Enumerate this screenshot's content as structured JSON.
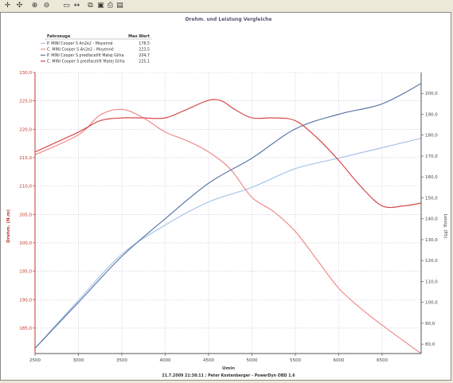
{
  "toolbar": {
    "icons": [
      "plus-cursor-icon",
      "zoom-to-point-icon",
      "zoom-in-icon",
      "zoom-out-icon",
      "select-region-icon",
      "pan-icon",
      "copy-icon",
      "save-icon",
      "print-icon",
      "export-icon"
    ]
  },
  "colors": {
    "p_cooper_a": "#a9c4e8",
    "c_cooper_a": "#f08a8a",
    "p_cooper_b": "#5b78a6",
    "c_cooper_b": "#d94a4a",
    "left_axis": "#c0392b",
    "grid": "#c8c8dc"
  },
  "chart_data": {
    "type": "line",
    "title": "Drehm. und Leistung Vergleiche",
    "legend_header": {
      "vehicle": "Fahrzeuge",
      "max": "Max Wert"
    },
    "xlabel": "Umin",
    "ylabel_left": "Drehm. (N.m)",
    "ylabel_right": "Leistg. (PS)",
    "footer": "21.7.2009 21:38:11 : Peter Kostenberger - PowerDyn OBD 1.6",
    "xlim": [
      2500,
      6950
    ],
    "ylim_left": [
      180.5,
      230
    ],
    "ylim_right": [
      75.5,
      210
    ],
    "x_ticks": [
      "2500",
      "3000",
      "3500",
      "4000",
      "4500",
      "5000",
      "5500",
      "6000",
      "6500"
    ],
    "y_left_ticks": [
      "185,0",
      "190,0",
      "195,0",
      "200,0",
      "205,0",
      "210,0",
      "215,0",
      "220,0",
      "225,0",
      "230,0"
    ],
    "y_right_ticks": [
      "80,0",
      "90,0",
      "100,0",
      "110,0",
      "120,0",
      "130,0",
      "140,0",
      "150,0",
      "160,0",
      "170,0",
      "180,0",
      "190,0",
      "200,0"
    ],
    "series": [
      {
        "name": "P. MINI Cooper S An2e2 - Moyenné",
        "max": "178,5",
        "axis": "right",
        "x": [
          2500,
          3000,
          3500,
          4000,
          4500,
          5000,
          5500,
          6000,
          6500,
          6950
        ],
        "y": [
          78,
          101,
          123,
          137,
          148,
          155,
          164,
          169,
          174,
          178.5
        ]
      },
      {
        "name": "C. MINI Cooper S An2e2 - Moyenné",
        "max": "223,5",
        "axis": "left",
        "x": [
          2500,
          3000,
          3250,
          3500,
          3750,
          4000,
          4250,
          4500,
          4750,
          5000,
          5250,
          5500,
          5750,
          6000,
          6250,
          6500,
          6950
        ],
        "y": [
          215.5,
          219,
          222.5,
          223.5,
          222,
          219.5,
          218,
          216,
          213,
          208,
          205.5,
          202,
          197,
          192,
          188.5,
          185.5,
          180.5
        ]
      },
      {
        "name": "P. MINI Cooper S predfacelift Matej Gilha",
        "max": "204,7",
        "axis": "right",
        "x": [
          2500,
          3000,
          3500,
          4000,
          4500,
          5000,
          5500,
          6000,
          6500,
          6950
        ],
        "y": [
          78,
          100,
          122,
          140,
          157,
          169,
          183,
          190,
          195,
          204.7
        ]
      },
      {
        "name": "C. MINI Cooper S predfacelift Matej Gilha",
        "max": "225,1",
        "axis": "left",
        "x": [
          2500,
          3000,
          3250,
          3500,
          3750,
          4000,
          4250,
          4500,
          4650,
          4800,
          5000,
          5250,
          5500,
          5750,
          6000,
          6250,
          6500,
          6750,
          6950
        ],
        "y": [
          216,
          219.5,
          221.5,
          222,
          222,
          222,
          223.5,
          225.1,
          225,
          223.5,
          222,
          222,
          221.5,
          218.5,
          214.5,
          210,
          206.5,
          206.5,
          207
        ]
      }
    ]
  }
}
